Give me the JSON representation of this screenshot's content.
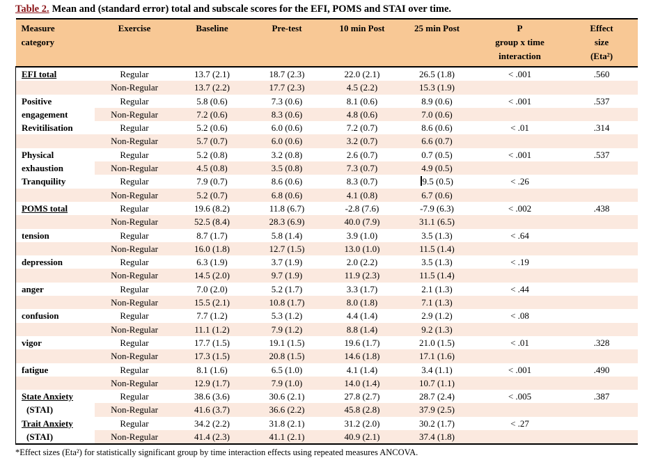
{
  "page": {
    "title_label": "Table 2.",
    "title_text": "Mean and (standard error) total and subscale scores for the EFI, POMS and STAI over time.",
    "footnote": "*Effect sizes (Eta²) for statistically significant group by time interaction effects using repeated measures ANCOVA."
  },
  "colors": {
    "header_bg": "#F8C895",
    "alt_row_bg": "#FBE9DF",
    "title_label_color": "#8B1418"
  },
  "columns": [
    "Measure\ncategory",
    "Exercise",
    "Baseline",
    "Pre-test",
    "10 min Post",
    "25 min Post",
    "P\ngroup x time\ninteraction",
    "Effect\nsize\n(Eta²)"
  ],
  "groups": [
    {
      "measure": "EFI total",
      "lines": [
        "EFI total"
      ],
      "underline": true,
      "rows": [
        {
          "exercise": "Regular",
          "baseline": "13.7 (2.1)",
          "pretest": "18.7 (2.3)",
          "post10": "22.0 (2.1)",
          "post25": "26.5 (1.8)",
          "p": "< .001",
          "effect": ".560"
        },
        {
          "exercise": "Non-Regular",
          "baseline": "13.7 (2.2)",
          "pretest": "17.7 (2.3)",
          "post10": "4.5 (2.2)",
          "post25": "15.3 (1.9)",
          "p": "",
          "effect": ""
        }
      ]
    },
    {
      "measure": "Positive engagement",
      "lines": [
        "Positive",
        "engagement"
      ],
      "underline": false,
      "rows": [
        {
          "exercise": "Regular",
          "baseline": "5.8 (0.6)",
          "pretest": "7.3 (0.6)",
          "post10": "8.1 (0.6)",
          "post25": "8.9 (0.6)",
          "p": "< .001",
          "effect": ".537"
        },
        {
          "exercise": "Non-Regular",
          "baseline": "7.2 (0.6)",
          "pretest": "8.3 (0.6)",
          "post10": "4.8 (0.6)",
          "post25": "7.0 (0.6)",
          "p": "",
          "effect": ""
        }
      ]
    },
    {
      "measure": "Revitilisation",
      "lines": [
        "Revitilisation"
      ],
      "underline": false,
      "rows": [
        {
          "exercise": "Regular",
          "baseline": "5.2 (0.6)",
          "pretest": "6.0 (0.6)",
          "post10": "7.2 (0.7)",
          "post25": "8.6 (0.6)",
          "p": "< .01",
          "effect": ".314"
        },
        {
          "exercise": "Non-Regular",
          "baseline": "5.7 (0.7)",
          "pretest": "6.0 (0.6)",
          "post10": "3.2 (0.7)",
          "post25": "6.6 (0.7)",
          "p": "",
          "effect": ""
        }
      ]
    },
    {
      "measure": "Physical exhaustion",
      "lines": [
        "Physical",
        "exhaustion"
      ],
      "underline": false,
      "rows": [
        {
          "exercise": "Regular",
          "baseline": "5.2 (0.8)",
          "pretest": "3.2 (0.8)",
          "post10": "2.6 (0.7)",
          "post25": "0.7 (0.5)",
          "p": "< .001",
          "effect": ".537"
        },
        {
          "exercise": "Non-Regular",
          "baseline": "4.5 (0.8)",
          "pretest": "3.5 (0.8)",
          "post10": "7.3 (0.7)",
          "post25": "4.9 (0.5)",
          "p": "",
          "effect": ""
        }
      ]
    },
    {
      "measure": "Tranquility",
      "lines": [
        "Tranquility"
      ],
      "underline": false,
      "rows": [
        {
          "exercise": "Regular",
          "baseline": "7.9 (0.7)",
          "pretest": "8.6 (0.6)",
          "post10": "8.3 (0.7)",
          "post25": "9.5 (0.5)",
          "p": "< .26",
          "effect": "",
          "cursor": "post25"
        },
        {
          "exercise": "Non-Regular",
          "baseline": "5.2 (0.7)",
          "pretest": "6.8 (0.6)",
          "post10": "4.1 (0.8)",
          "post25": "6.7 (0.6)",
          "p": "",
          "effect": ""
        }
      ]
    },
    {
      "measure": "POMS total",
      "lines": [
        "POMS total"
      ],
      "underline": true,
      "rows": [
        {
          "exercise": "Regular",
          "baseline": "19.6 (8.2)",
          "pretest": "11.8 (6.7)",
          "post10": "-2.8 (7.6)",
          "post25": "-7.9 (6.3)",
          "p": "< .002",
          "effect": ".438"
        },
        {
          "exercise": "Non-Regular",
          "baseline": "52.5 (8.4)",
          "pretest": "28.3 (6.9)",
          "post10": "40.0 (7.9)",
          "post25": "31.1 (6.5)",
          "p": "",
          "effect": ""
        }
      ]
    },
    {
      "measure": "tension",
      "lines": [
        "tension"
      ],
      "underline": false,
      "rows": [
        {
          "exercise": "Regular",
          "baseline": "8.7 (1.7)",
          "pretest": "5.8 (1.4)",
          "post10": "3.9 (1.0)",
          "post25": "3.5 (1.3)",
          "p": "< .64",
          "effect": ""
        },
        {
          "exercise": "Non-Regular",
          "baseline": "16.0 (1.8)",
          "pretest": "12.7 (1.5)",
          "post10": "13.0 (1.0)",
          "post25": "11.5 (1.4)",
          "p": "",
          "effect": ""
        }
      ]
    },
    {
      "measure": "depression",
      "lines": [
        "depression"
      ],
      "underline": false,
      "rows": [
        {
          "exercise": "Regular",
          "baseline": "6.3 (1.9)",
          "pretest": "3.7 (1.9)",
          "post10": "2.0 (2.2)",
          "post25": "3.5 (1.3)",
          "p": "< .19",
          "effect": ""
        },
        {
          "exercise": "Non-Regular",
          "baseline": "14.5 (2.0)",
          "pretest": "9.7 (1.9)",
          "post10": "11.9 (2.3)",
          "post25": "11.5 (1.4)",
          "p": "",
          "effect": ""
        }
      ]
    },
    {
      "measure": "anger",
      "lines": [
        "anger"
      ],
      "underline": false,
      "rows": [
        {
          "exercise": "Regular",
          "baseline": "7.0 (2.0)",
          "pretest": "5.2 (1.7)",
          "post10": "3.3 (1.7)",
          "post25": "2.1 (1.3)",
          "p": "< .44",
          "effect": ""
        },
        {
          "exercise": "Non-Regular",
          "baseline": "15.5 (2.1)",
          "pretest": "10.8 (1.7)",
          "post10": "8.0 (1.8)",
          "post25": "7.1 (1.3)",
          "p": "",
          "effect": ""
        }
      ]
    },
    {
      "measure": "confusion",
      "lines": [
        "confusion"
      ],
      "underline": false,
      "rows": [
        {
          "exercise": "Regular",
          "baseline": "7.7 (1.2)",
          "pretest": "5.3 (1.2)",
          "post10": "4.4 (1.4)",
          "post25": "2.9 (1.2)",
          "p": "< .08",
          "effect": ""
        },
        {
          "exercise": "Non-Regular",
          "baseline": "11.1 (1.2)",
          "pretest": "7.9 (1.2)",
          "post10": "8.8 (1.4)",
          "post25": "9.2 (1.3)",
          "p": "",
          "effect": ""
        }
      ]
    },
    {
      "measure": "vigor",
      "lines": [
        "vigor"
      ],
      "underline": false,
      "rows": [
        {
          "exercise": "Regular",
          "baseline": "17.7 (1.5)",
          "pretest": "19.1 (1.5)",
          "post10": "19.6 (1.7)",
          "post25": "21.0 (1.5)",
          "p": "< .01",
          "effect": ".328"
        },
        {
          "exercise": "Non-Regular",
          "baseline": "17.3 (1.5)",
          "pretest": "20.8 (1.5)",
          "post10": "14.6 (1.8)",
          "post25": "17.1 (1.6)",
          "p": "",
          "effect": ""
        }
      ]
    },
    {
      "measure": "fatigue",
      "lines": [
        "fatigue"
      ],
      "underline": false,
      "rows": [
        {
          "exercise": "Regular",
          "baseline": "8.1 (1.6)",
          "pretest": "6.5 (1.0)",
          "post10": "4.1 (1.4)",
          "post25": "3.4 (1.1)",
          "p": "< .001",
          "effect": ".490"
        },
        {
          "exercise": "Non-Regular",
          "baseline": "12.9 (1.7)",
          "pretest": "7.9 (1.0)",
          "post10": "14.0 (1.4)",
          "post25": "10.7 (1.1)",
          "p": "",
          "effect": ""
        }
      ]
    },
    {
      "measure": "State Anxiety (STAI)",
      "lines": [
        "State Anxiety",
        "(STAI)"
      ],
      "underline": true,
      "rows": [
        {
          "exercise": "Regular",
          "baseline": "38.6 (3.6)",
          "pretest": "30.6 (2.1)",
          "post10": "27.8 (2.7)",
          "post25": "28.7 (2.4)",
          "p": "< .005",
          "effect": ".387"
        },
        {
          "exercise": "Non-Regular",
          "baseline": "41.6 (3.7)",
          "pretest": "36.6 (2.2)",
          "post10": "45.8 (2.8)",
          "post25": "37.9 (2.5)",
          "p": "",
          "effect": ""
        }
      ]
    },
    {
      "measure": "Trait Anxiety (STAI)",
      "lines": [
        "Trait Anxiety",
        "(STAI)"
      ],
      "underline": true,
      "rows": [
        {
          "exercise": "Regular",
          "baseline": "34.2 (2.2)",
          "pretest": "31.8 (2.1)",
          "post10": "31.2 (2.0)",
          "post25": "30.2 (1.7)",
          "p": "< .27",
          "effect": ""
        },
        {
          "exercise": "Non-Regular",
          "baseline": "41.4 (2.3)",
          "pretest": "41.1 (2.1)",
          "post10": "40.9 (2.1)",
          "post25": "37.4 (1.8)",
          "p": "",
          "effect": ""
        }
      ]
    }
  ]
}
